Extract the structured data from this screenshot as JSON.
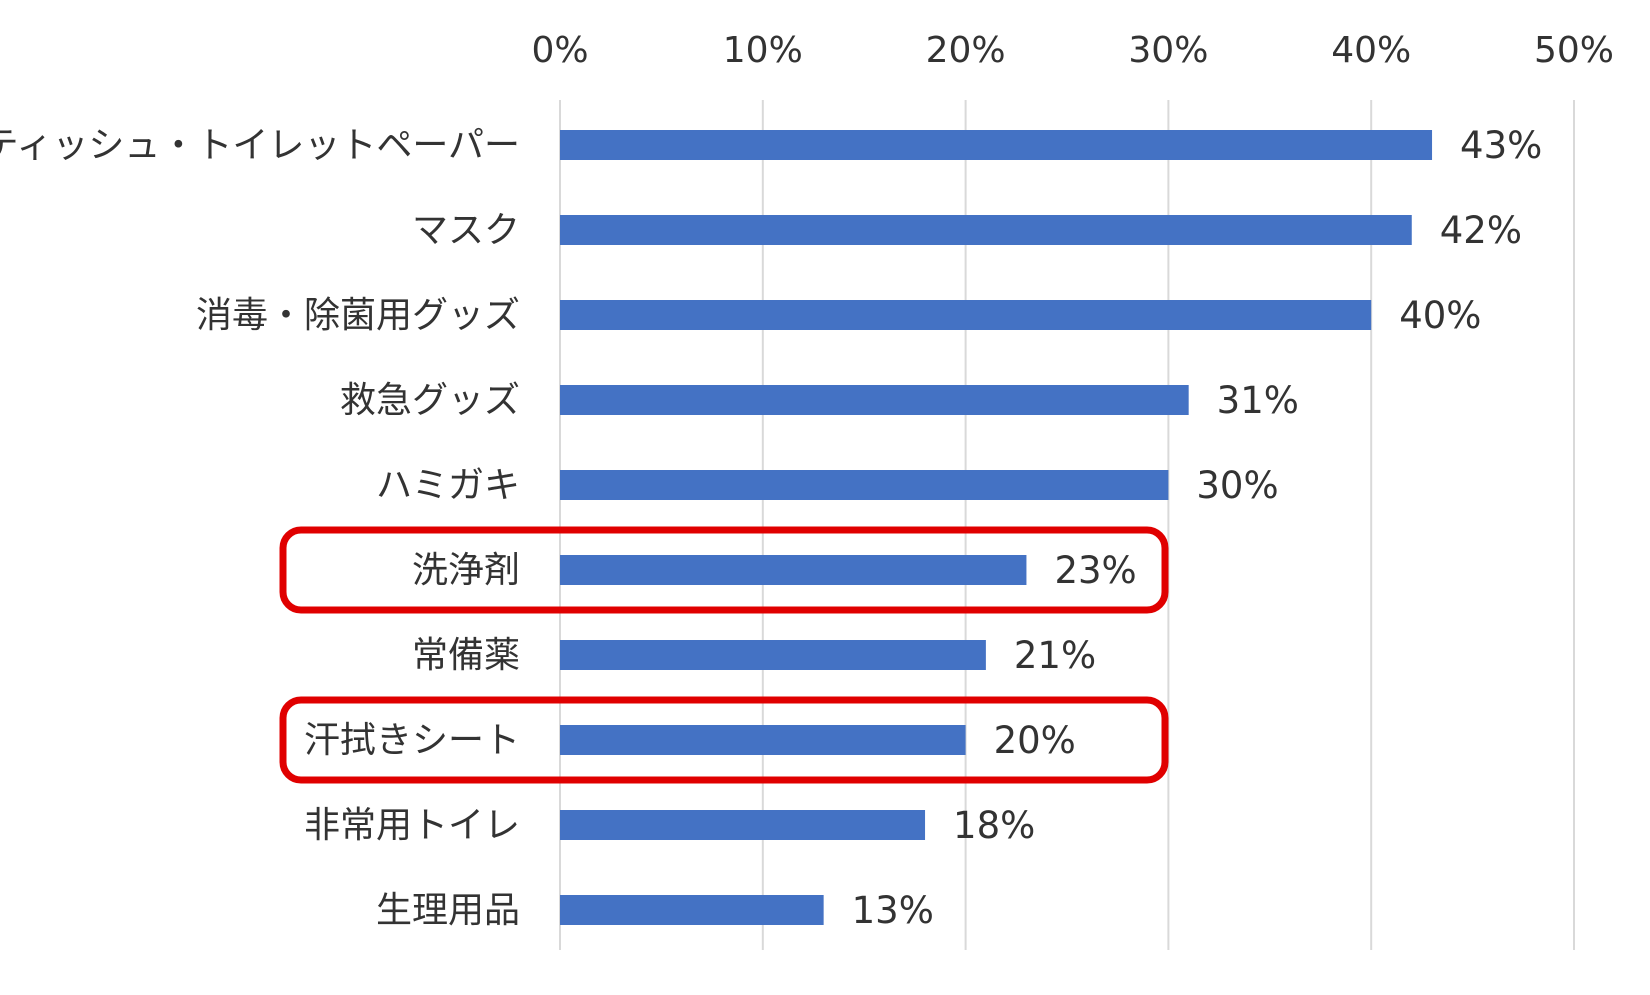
{
  "chart_data": {
    "type": "bar",
    "orientation": "horizontal",
    "title": "",
    "xlabel": "",
    "ylabel": "",
    "xlim": [
      0,
      50
    ],
    "x_ticks": [
      0,
      10,
      20,
      30,
      40,
      50
    ],
    "x_tick_labels": [
      "0%",
      "10%",
      "20%",
      "30%",
      "40%",
      "50%"
    ],
    "x_axis_position": "top",
    "grid": "vertical",
    "legend": "none",
    "bar_color": "#4472c4",
    "highlight_color": "#e00000",
    "categories": [
      "ティッシュ・トイレットペーパー",
      "マスク",
      "消毒・除菌用グッズ",
      "救急グッズ",
      "ハミガキ",
      "洗浄剤",
      "常備薬",
      "汗拭きシート",
      "非常用トイレ",
      "生理用品"
    ],
    "values": [
      43,
      42,
      40,
      31,
      30,
      23,
      21,
      20,
      18,
      13
    ],
    "data_labels": [
      "43%",
      "42%",
      "40%",
      "31%",
      "30%",
      "23%",
      "21%",
      "20%",
      "18%",
      "13%"
    ],
    "highlighted_categories": [
      "洗浄剤",
      "汗拭きシート"
    ]
  }
}
